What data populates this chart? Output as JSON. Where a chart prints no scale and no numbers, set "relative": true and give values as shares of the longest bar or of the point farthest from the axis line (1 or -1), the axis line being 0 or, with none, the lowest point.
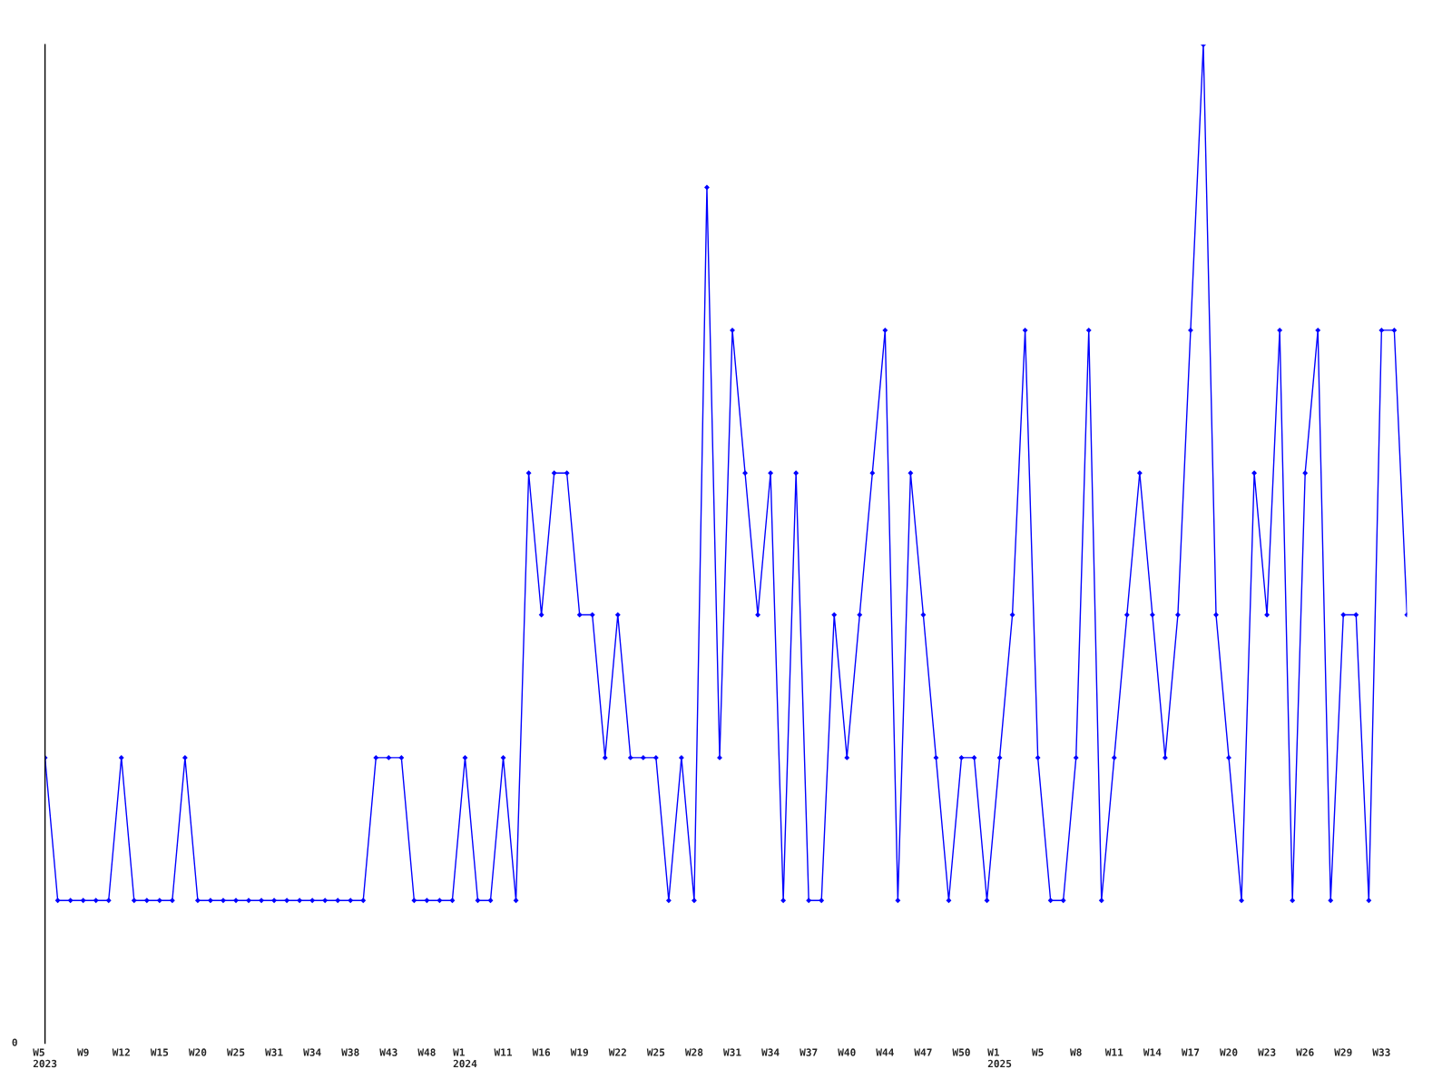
{
  "chart_data": {
    "type": "line",
    "relative": true,
    "color": "#0000ff",
    "marker": "diamond",
    "grid": false,
    "legend": false,
    "tick_labels": "x",
    "annotations": [
      "0"
    ],
    "categories": [
      "W5\n2023",
      null,
      null,
      "W9",
      null,
      null,
      "W12",
      null,
      null,
      "W15",
      null,
      null,
      "W20",
      null,
      null,
      "W25",
      null,
      null,
      "W31",
      null,
      null,
      "W34",
      null,
      null,
      "W38",
      null,
      null,
      "W43",
      null,
      null,
      "W48",
      null,
      null,
      "W1\n2024",
      null,
      null,
      "W11",
      null,
      null,
      "W16",
      null,
      null,
      "W19",
      null,
      null,
      "W22",
      null,
      null,
      "W25",
      null,
      null,
      "W28",
      null,
      null,
      "W31",
      null,
      null,
      "W34",
      null,
      null,
      "W37",
      null,
      null,
      "W40",
      null,
      null,
      "W44",
      null,
      null,
      "W47",
      null,
      null,
      "W50",
      null,
      null,
      "W1\n2025",
      null,
      null,
      "W5",
      null,
      null,
      "W8",
      null,
      null,
      "W11",
      null,
      null,
      "W14",
      null,
      null,
      "W17",
      null,
      null,
      "W20",
      null,
      null,
      "W23",
      null,
      null,
      "W26",
      null,
      null,
      "W29",
      null,
      null,
      "W33",
      null,
      null
    ],
    "values": [
      0.286,
      0.143,
      0.143,
      0.143,
      0.143,
      0.143,
      0.286,
      0.143,
      0.143,
      0.143,
      0.143,
      0.286,
      0.143,
      0.143,
      0.143,
      0.143,
      0.143,
      0.143,
      0.143,
      0.143,
      0.143,
      0.143,
      0.143,
      0.143,
      0.143,
      0.143,
      0.286,
      0.286,
      0.286,
      0.143,
      0.143,
      0.143,
      0.143,
      0.286,
      0.143,
      0.143,
      0.286,
      0.143,
      0.571,
      0.429,
      0.571,
      0.571,
      0.429,
      0.429,
      0.286,
      0.429,
      0.286,
      0.286,
      0.286,
      0.143,
      0.286,
      0.143,
      0.857,
      0.286,
      0.714,
      0.571,
      0.429,
      0.571,
      0.143,
      0.571,
      0.143,
      0.143,
      0.429,
      0.286,
      0.429,
      0.571,
      0.714,
      0.143,
      0.571,
      0.429,
      0.286,
      0.143,
      0.286,
      0.286,
      0.143,
      0.286,
      0.429,
      0.714,
      0.286,
      0.143,
      0.143,
      0.286,
      0.714,
      0.143,
      0.286,
      0.429,
      0.571,
      0.429,
      0.286,
      0.429,
      0.714,
      1,
      0.429,
      0.286,
      0.143,
      0.571,
      0.429,
      0.714,
      0.143,
      0.571,
      0.714,
      0.143,
      0.429,
      0.429,
      0.143,
      0.714,
      0.714,
      0.429
    ]
  }
}
